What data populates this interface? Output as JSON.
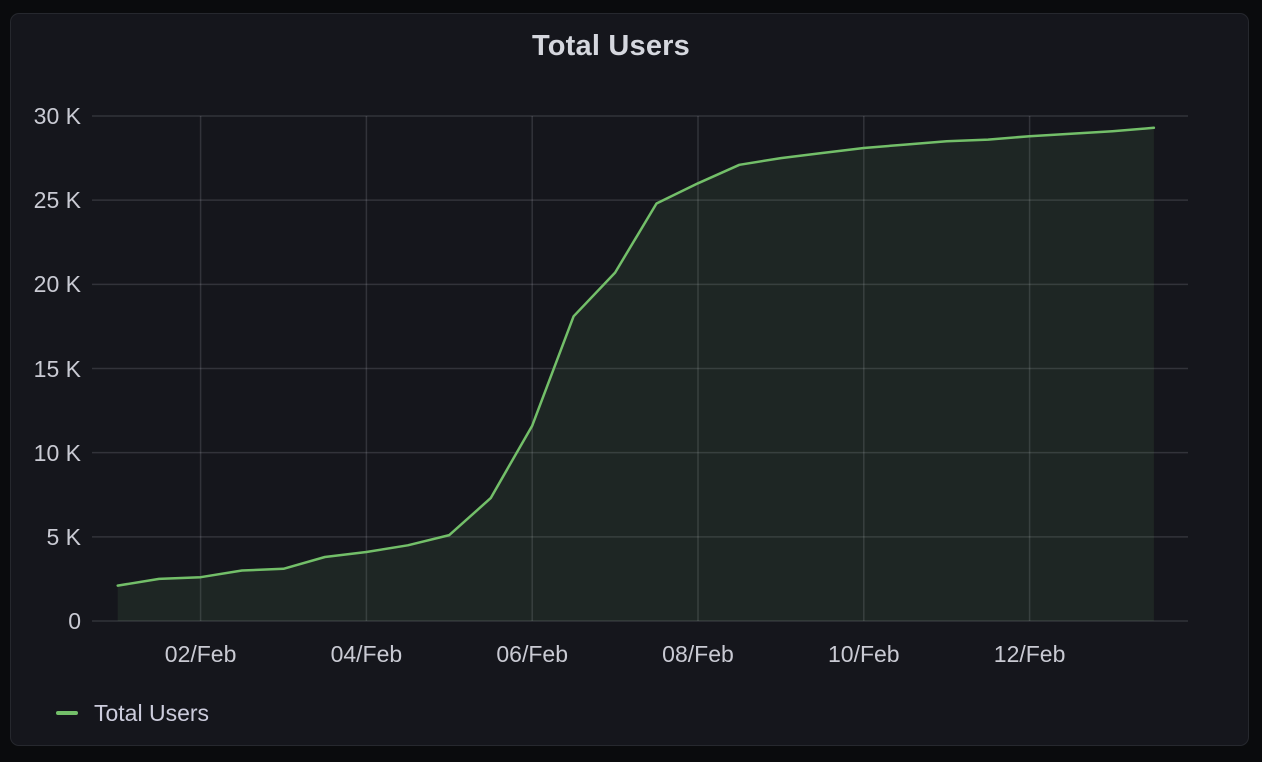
{
  "panel": {
    "title": "Total Users"
  },
  "legend": {
    "items": [
      {
        "label": "Total Users",
        "color": "#73bf69"
      }
    ]
  },
  "colors": {
    "page_background": "#0a0b0d",
    "panel_background": "#15161c",
    "panel_border": "#26282e",
    "grid_line": "rgba(204,204,220,0.16)",
    "axis_text": "#c9cad3",
    "title_text": "#d5d7de",
    "series_green": "#73bf69",
    "series_fill": "rgba(115,191,105,0.10)"
  },
  "chart_data": {
    "type": "area",
    "title": "Total Users",
    "xlabel": "",
    "ylabel": "",
    "grid": true,
    "legend_position": "bottom-left",
    "ylim": [
      0,
      30000
    ],
    "x_range_days_feb": [
      0.69,
      13.91
    ],
    "y_ticks": [
      {
        "label": "0",
        "value": 0
      },
      {
        "label": "5 K",
        "value": 5000
      },
      {
        "label": "10 K",
        "value": 10000
      },
      {
        "label": "15 K",
        "value": 15000
      },
      {
        "label": "20 K",
        "value": 20000
      },
      {
        "label": "25 K",
        "value": 25000
      },
      {
        "label": "30 K",
        "value": 30000
      }
    ],
    "x_ticks": [
      {
        "label": "02/Feb",
        "day": 2
      },
      {
        "label": "04/Feb",
        "day": 4
      },
      {
        "label": "06/Feb",
        "day": 6
      },
      {
        "label": "08/Feb",
        "day": 8
      },
      {
        "label": "10/Feb",
        "day": 10
      },
      {
        "label": "12/Feb",
        "day": 12
      }
    ],
    "series": [
      {
        "name": "Total Users",
        "color": "#73bf69",
        "fill_opacity": 0.1,
        "points": [
          {
            "time": "01/Feb 00:00",
            "users": 2100
          },
          {
            "time": "01/Feb 12:00",
            "users": 2500
          },
          {
            "time": "02/Feb 00:00",
            "users": 2600
          },
          {
            "time": "02/Feb 12:00",
            "users": 3000
          },
          {
            "time": "03/Feb 00:00",
            "users": 3100
          },
          {
            "time": "03/Feb 12:00",
            "users": 3800
          },
          {
            "time": "04/Feb 00:00",
            "users": 4100
          },
          {
            "time": "04/Feb 12:00",
            "users": 4500
          },
          {
            "time": "05/Feb 00:00",
            "users": 5100
          },
          {
            "time": "05/Feb 12:00",
            "users": 7300
          },
          {
            "time": "06/Feb 00:00",
            "users": 11600
          },
          {
            "time": "06/Feb 12:00",
            "users": 18100
          },
          {
            "time": "07/Feb 00:00",
            "users": 20700
          },
          {
            "time": "07/Feb 12:00",
            "users": 24800
          },
          {
            "time": "08/Feb 00:00",
            "users": 26000
          },
          {
            "time": "08/Feb 12:00",
            "users": 27100
          },
          {
            "time": "09/Feb 00:00",
            "users": 27500
          },
          {
            "time": "09/Feb 12:00",
            "users": 27800
          },
          {
            "time": "10/Feb 00:00",
            "users": 28100
          },
          {
            "time": "10/Feb 12:00",
            "users": 28300
          },
          {
            "time": "11/Feb 00:00",
            "users": 28500
          },
          {
            "time": "11/Feb 12:00",
            "users": 28600
          },
          {
            "time": "12/Feb 00:00",
            "users": 28800
          },
          {
            "time": "12/Feb 12:00",
            "users": 28950
          },
          {
            "time": "13/Feb 00:00",
            "users": 29100
          },
          {
            "time": "13/Feb 12:00",
            "users": 29300
          }
        ]
      }
    ]
  }
}
